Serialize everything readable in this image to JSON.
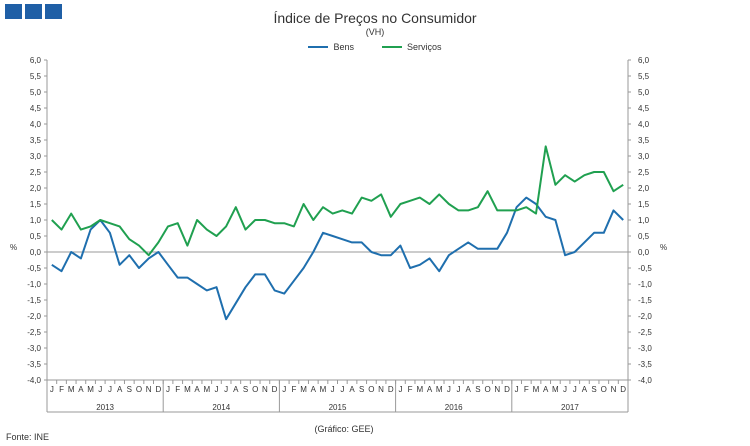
{
  "title": "Índice de Preços no Consumidor",
  "subtitle": "(VH)",
  "footer": {
    "source": "Fonte: INE",
    "credit": "(Gráfico: GEE)"
  },
  "colors": {
    "bens": "#1f6fae",
    "servicos": "#20a050",
    "logo": "#1f5fa6"
  },
  "chart_data": {
    "type": "line",
    "title": "Índice de Preços no Consumidor",
    "subtitle": "(VH)",
    "ylabel": "%",
    "ylim": [
      -4.0,
      6.0
    ],
    "y_ticks": [
      "6,0",
      "5,5",
      "5,0",
      "4,5",
      "4,0",
      "3,5",
      "3,0",
      "2,5",
      "2,0",
      "1,5",
      "1,0",
      "0,5",
      "0,0",
      "-0,5",
      "-1,0",
      "-1,5",
      "-2,0",
      "-2,5",
      "-3,0",
      "-3,5",
      "-4,0"
    ],
    "month_labels": [
      "J",
      "F",
      "M",
      "A",
      "M",
      "J",
      "J",
      "A",
      "S",
      "O",
      "N",
      "D"
    ],
    "years": [
      "2013",
      "2014",
      "2015",
      "2016",
      "2017"
    ],
    "legend_position": "top-center",
    "series": [
      {
        "name": "Bens",
        "color": "#1f6fae",
        "values": [
          -0.4,
          -0.6,
          0.0,
          -0.2,
          0.7,
          1.0,
          0.6,
          -0.4,
          -0.1,
          -0.5,
          -0.2,
          0.0,
          -0.4,
          -0.8,
          -0.8,
          -1.0,
          -1.2,
          -1.1,
          -2.1,
          -1.6,
          -1.1,
          -0.7,
          -0.7,
          -1.2,
          -1.3,
          -0.9,
          -0.5,
          0.0,
          0.6,
          0.5,
          0.4,
          0.3,
          0.3,
          0.0,
          -0.1,
          -0.1,
          0.2,
          -0.5,
          -0.4,
          -0.2,
          -0.6,
          -0.1,
          0.1,
          0.3,
          0.1,
          0.1,
          0.1,
          0.6,
          1.4,
          1.7,
          1.5,
          1.1,
          1.0,
          -0.1,
          0.0,
          0.3,
          0.6,
          0.6,
          1.3,
          1.0
        ]
      },
      {
        "name": "Serviços",
        "color": "#20a050",
        "values": [
          1.0,
          0.7,
          1.2,
          0.7,
          0.8,
          1.0,
          0.9,
          0.8,
          0.4,
          0.2,
          -0.1,
          0.3,
          0.8,
          0.9,
          0.2,
          1.0,
          0.7,
          0.5,
          0.8,
          1.4,
          0.7,
          1.0,
          1.0,
          0.9,
          0.9,
          0.8,
          1.5,
          1.0,
          1.4,
          1.2,
          1.3,
          1.2,
          1.7,
          1.6,
          1.8,
          1.1,
          1.5,
          1.6,
          1.7,
          1.5,
          1.8,
          1.5,
          1.3,
          1.3,
          1.4,
          1.9,
          1.3,
          1.3,
          1.3,
          1.4,
          1.2,
          3.3,
          2.1,
          2.4,
          2.2,
          2.4,
          2.5,
          2.5,
          1.9,
          2.1
        ]
      }
    ]
  }
}
